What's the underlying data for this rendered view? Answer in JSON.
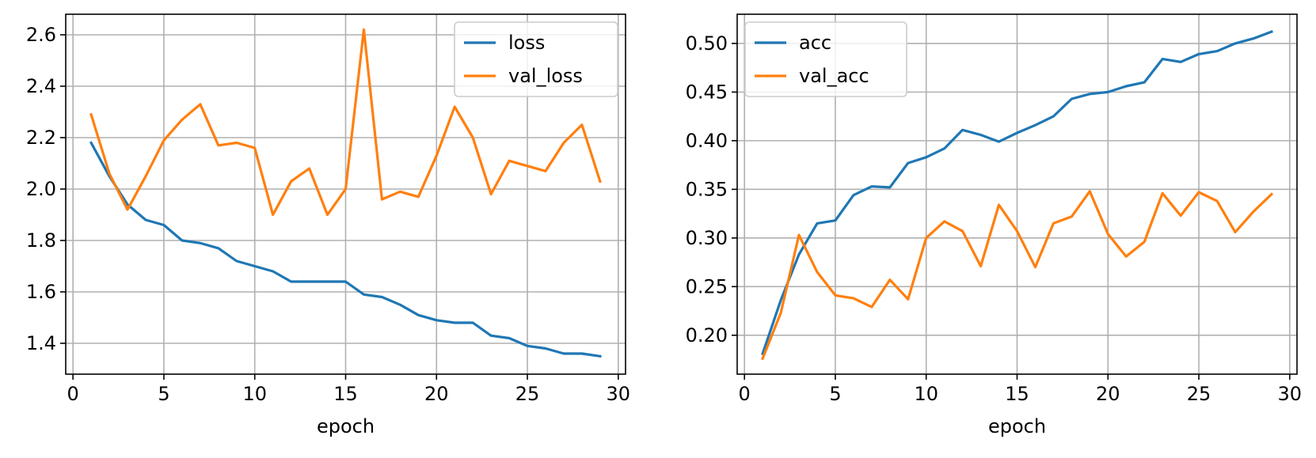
{
  "chart_data": [
    {
      "type": "line",
      "title": "",
      "xlabel": "epoch",
      "ylabel": "",
      "xlim": [
        -0.4,
        30.4
      ],
      "ylim": [
        1.28,
        2.68
      ],
      "xticks": [
        0,
        5,
        10,
        15,
        20,
        25,
        30
      ],
      "yticks": [
        1.4,
        1.6,
        1.8,
        2.0,
        2.2,
        2.4,
        2.6
      ],
      "ytick_decimals": 1,
      "grid": true,
      "legend_position": "top-right",
      "x": [
        1,
        2,
        3,
        4,
        5,
        6,
        7,
        8,
        9,
        10,
        11,
        12,
        13,
        14,
        15,
        16,
        17,
        18,
        19,
        20,
        21,
        22,
        23,
        24,
        25,
        26,
        27,
        28,
        29
      ],
      "series": [
        {
          "name": "loss",
          "color": "#1f77b4",
          "values": [
            2.18,
            2.05,
            1.94,
            1.88,
            1.86,
            1.8,
            1.79,
            1.77,
            1.72,
            1.7,
            1.68,
            1.64,
            1.64,
            1.64,
            1.64,
            1.59,
            1.58,
            1.55,
            1.51,
            1.49,
            1.48,
            1.48,
            1.43,
            1.42,
            1.39,
            1.38,
            1.36,
            1.36,
            1.35
          ]
        },
        {
          "name": "val_loss",
          "color": "#ff7f0e",
          "values": [
            2.29,
            2.06,
            1.92,
            2.05,
            2.19,
            2.27,
            2.33,
            2.17,
            2.18,
            2.16,
            1.9,
            2.03,
            2.08,
            1.9,
            2.0,
            2.62,
            1.96,
            1.99,
            1.97,
            2.13,
            2.32,
            2.2,
            1.98,
            2.11,
            2.09,
            2.07,
            2.18,
            2.25,
            2.03
          ]
        }
      ]
    },
    {
      "type": "line",
      "title": "",
      "xlabel": "epoch",
      "ylabel": "",
      "xlim": [
        -0.4,
        30.4
      ],
      "ylim": [
        0.16,
        0.53
      ],
      "xticks": [
        0,
        5,
        10,
        15,
        20,
        25,
        30
      ],
      "yticks": [
        0.2,
        0.25,
        0.3,
        0.35,
        0.4,
        0.45,
        0.5
      ],
      "ytick_decimals": 2,
      "grid": true,
      "legend_position": "top-left",
      "x": [
        1,
        2,
        3,
        4,
        5,
        6,
        7,
        8,
        9,
        10,
        11,
        12,
        13,
        14,
        15,
        16,
        17,
        18,
        19,
        20,
        21,
        22,
        23,
        24,
        25,
        26,
        27,
        28,
        29
      ],
      "series": [
        {
          "name": "acc",
          "color": "#1f77b4",
          "values": [
            0.181,
            0.236,
            0.283,
            0.315,
            0.318,
            0.344,
            0.353,
            0.352,
            0.377,
            0.383,
            0.392,
            0.411,
            0.406,
            0.399,
            0.408,
            0.416,
            0.425,
            0.443,
            0.448,
            0.45,
            0.456,
            0.46,
            0.484,
            0.481,
            0.489,
            0.492,
            0.5,
            0.505,
            0.512
          ]
        },
        {
          "name": "val_acc",
          "color": "#ff7f0e",
          "values": [
            0.176,
            0.223,
            0.303,
            0.265,
            0.241,
            0.238,
            0.229,
            0.257,
            0.237,
            0.3,
            0.317,
            0.307,
            0.271,
            0.334,
            0.307,
            0.27,
            0.315,
            0.322,
            0.348,
            0.304,
            0.281,
            0.296,
            0.346,
            0.323,
            0.347,
            0.338,
            0.306,
            0.327,
            0.345
          ]
        }
      ]
    }
  ]
}
